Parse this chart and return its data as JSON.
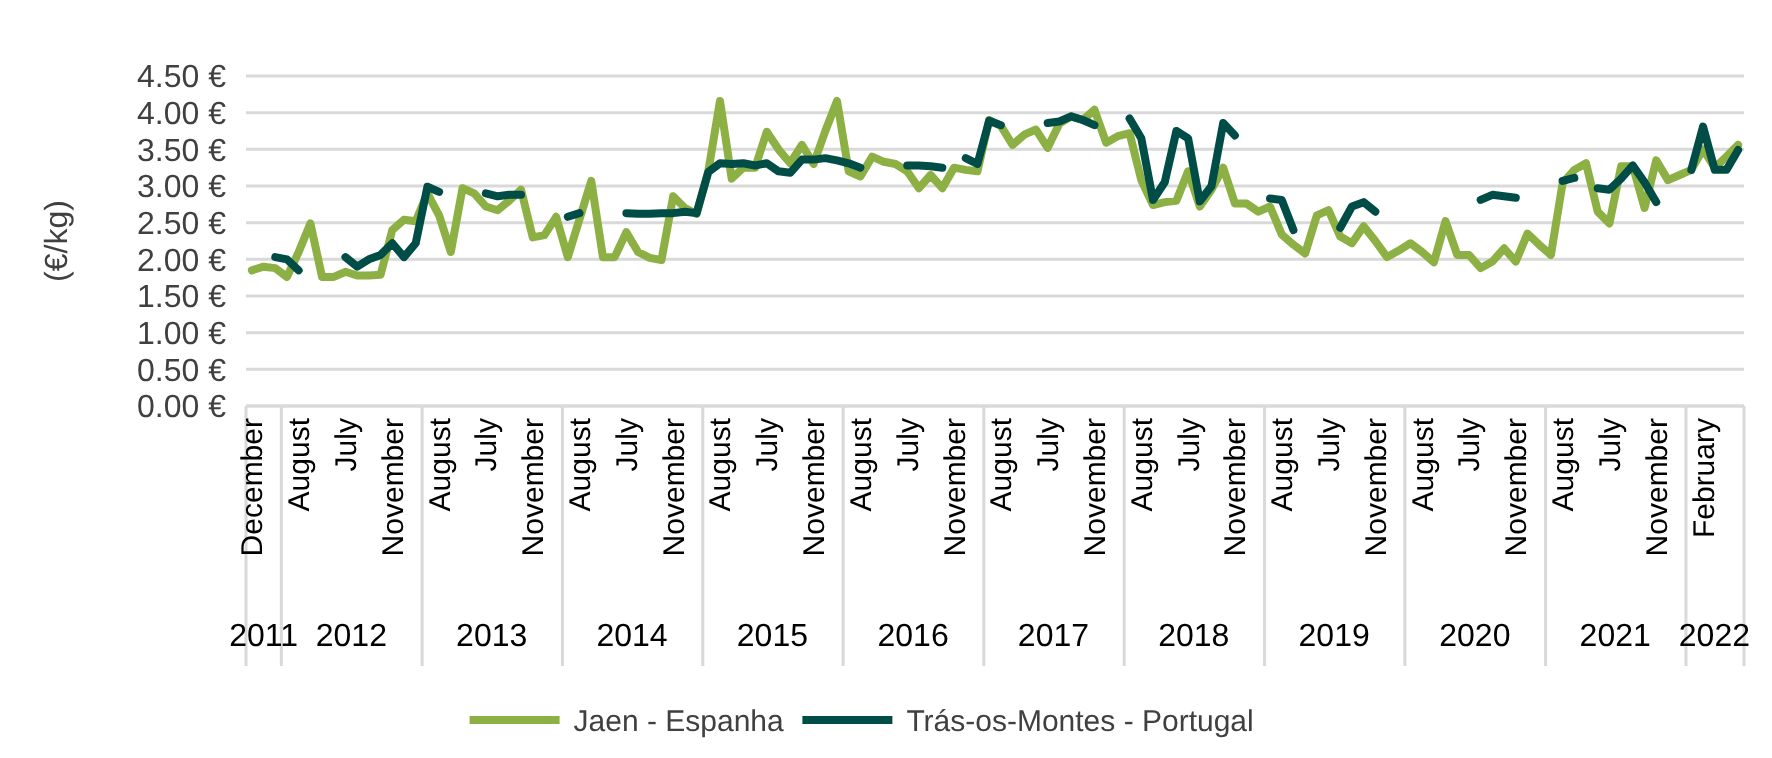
{
  "chart_data": {
    "type": "line",
    "ylabel": "(€/kg)",
    "categories": [
      "December",
      null,
      null,
      null,
      "August",
      null,
      null,
      null,
      "July",
      null,
      null,
      null,
      "November",
      null,
      null,
      null,
      "August",
      null,
      null,
      null,
      "July",
      null,
      null,
      null,
      "November",
      null,
      null,
      null,
      "August",
      null,
      null,
      null,
      "July",
      null,
      null,
      null,
      "November",
      null,
      null,
      null,
      "August",
      null,
      null,
      null,
      "July",
      null,
      null,
      null,
      "November",
      null,
      null,
      null,
      "August",
      null,
      null,
      null,
      "July",
      null,
      null,
      null,
      "November",
      null,
      null,
      null,
      "August",
      null,
      null,
      null,
      "July",
      null,
      null,
      null,
      "November",
      null,
      null,
      null,
      "August",
      null,
      null,
      null,
      "July",
      null,
      null,
      null,
      "November",
      null,
      null,
      null,
      "August",
      null,
      null,
      null,
      "July",
      null,
      null,
      null,
      "November",
      null,
      null,
      null,
      "August",
      null,
      null,
      null,
      "July",
      null,
      null,
      null,
      "November",
      null,
      null,
      null,
      "August",
      null,
      null,
      null,
      "July",
      null,
      null,
      null,
      "November",
      null,
      null,
      null,
      "February",
      null,
      null,
      null
    ],
    "x2lim": [
      "2011-10-01",
      "2022-06-01"
    ],
    "x2ticks": [
      {
        "value": "2011-11-16",
        "label": "2011"
      },
      {
        "value": "2012-07-01",
        "label": "2012"
      },
      {
        "value": "2013-07-01",
        "label": "2013"
      },
      {
        "value": "2014-07-01",
        "label": "2014"
      },
      {
        "value": "2015-07-01",
        "label": "2015"
      },
      {
        "value": "2016-07-01",
        "label": "2016"
      },
      {
        "value": "2017-07-01",
        "label": "2017"
      },
      {
        "value": "2018-07-01",
        "label": "2018"
      },
      {
        "value": "2019-07-01",
        "label": "2019"
      },
      {
        "value": "2020-07-01",
        "label": "2020"
      },
      {
        "value": "2021-07-01",
        "label": "2021"
      },
      {
        "value": "2022-03-16",
        "label": "2022"
      }
    ],
    "ylim": [
      0,
      4.5
    ],
    "yticks": [
      {
        "value": 0,
        "label": "0.00 €"
      },
      {
        "value": 0.5,
        "label": "0.50 €"
      },
      {
        "value": 1,
        "label": "1.00 €"
      },
      {
        "value": 1.5,
        "label": "1.50 €"
      },
      {
        "value": 2,
        "label": "2.00 €"
      },
      {
        "value": 2.5,
        "label": "2.50 €"
      },
      {
        "value": 3,
        "label": "3.00 €"
      },
      {
        "value": 3.5,
        "label": "3.50 €"
      },
      {
        "value": 4,
        "label": "4.00 €"
      },
      {
        "value": 4.5,
        "label": "4.50 €"
      }
    ],
    "grid": "y",
    "legend": "bottom",
    "line_style": "solid",
    "series": [
      {
        "name": "Jaen - Espanha",
        "color": "#8cb043",
        "values": [
          1.85,
          1.9,
          1.88,
          1.76,
          2.1,
          2.49,
          1.76,
          1.76,
          1.83,
          1.78,
          1.78,
          1.79,
          2.4,
          2.54,
          2.52,
          2.9,
          2.6,
          2.1,
          2.97,
          2.9,
          2.72,
          2.67,
          2.8,
          2.95,
          2.3,
          2.33,
          2.58,
          2.03,
          2.55,
          3.07,
          2.03,
          2.03,
          2.37,
          2.1,
          2.02,
          1.99,
          2.86,
          2.7,
          2.62,
          3.2,
          4.16,
          3.1,
          3.25,
          3.25,
          3.74,
          3.5,
          3.31,
          3.56,
          3.3,
          3.75,
          4.16,
          3.2,
          3.13,
          3.4,
          3.33,
          3.3,
          3.2,
          2.97,
          3.15,
          2.97,
          3.25,
          3.22,
          3.2,
          3.9,
          3.82,
          3.56,
          3.7,
          3.77,
          3.52,
          3.85,
          3.95,
          3.9,
          4.04,
          3.59,
          3.68,
          3.72,
          3.08,
          2.74,
          2.78,
          2.8,
          3.2,
          2.72,
          2.95,
          3.25,
          2.76,
          2.76,
          2.65,
          2.72,
          2.34,
          2.2,
          2.08,
          2.6,
          2.67,
          2.31,
          2.22,
          2.45,
          2.25,
          2.03,
          2.12,
          2.22,
          2.1,
          1.96,
          2.52,
          2.06,
          2.06,
          1.88,
          1.97,
          2.15,
          1.97,
          2.35,
          2.2,
          2.06,
          3.04,
          3.22,
          3.31,
          2.65,
          2.49,
          3.27,
          3.27,
          2.7,
          3.35,
          3.08,
          3.15,
          3.22,
          3.5,
          3.25,
          3.4,
          3.56
        ]
      },
      {
        "name": "Trás-os-Montes - Portugal",
        "color": "#004d47",
        "values": [
          null,
          null,
          2.03,
          2.0,
          1.85,
          null,
          null,
          null,
          2.03,
          1.9,
          2.0,
          2.06,
          2.22,
          2.03,
          2.22,
          2.99,
          2.92,
          null,
          null,
          null,
          2.9,
          2.86,
          2.88,
          2.88,
          null,
          null,
          null,
          2.58,
          2.63,
          null,
          null,
          null,
          2.63,
          2.62,
          2.62,
          2.63,
          2.63,
          2.65,
          2.63,
          3.19,
          3.31,
          3.3,
          3.31,
          3.28,
          3.31,
          3.2,
          3.18,
          3.36,
          3.36,
          3.38,
          3.35,
          3.31,
          3.25,
          null,
          null,
          null,
          3.28,
          3.28,
          3.27,
          3.25,
          null,
          3.38,
          3.3,
          3.89,
          3.83,
          null,
          null,
          null,
          3.86,
          3.88,
          3.95,
          3.9,
          3.83,
          null,
          null,
          3.92,
          3.65,
          2.81,
          3.05,
          3.75,
          3.65,
          2.79,
          3.0,
          3.86,
          3.69,
          null,
          null,
          2.83,
          2.81,
          2.4,
          null,
          null,
          null,
          2.43,
          2.72,
          2.78,
          2.65,
          null,
          null,
          null,
          null,
          null,
          null,
          null,
          null,
          2.81,
          2.88,
          2.86,
          2.84,
          null,
          null,
          null,
          3.07,
          3.11,
          null,
          2.97,
          2.95,
          3.1,
          3.28,
          3.05,
          2.78,
          null,
          null,
          3.22,
          3.81,
          3.22,
          3.22,
          3.49
        ]
      }
    ]
  }
}
